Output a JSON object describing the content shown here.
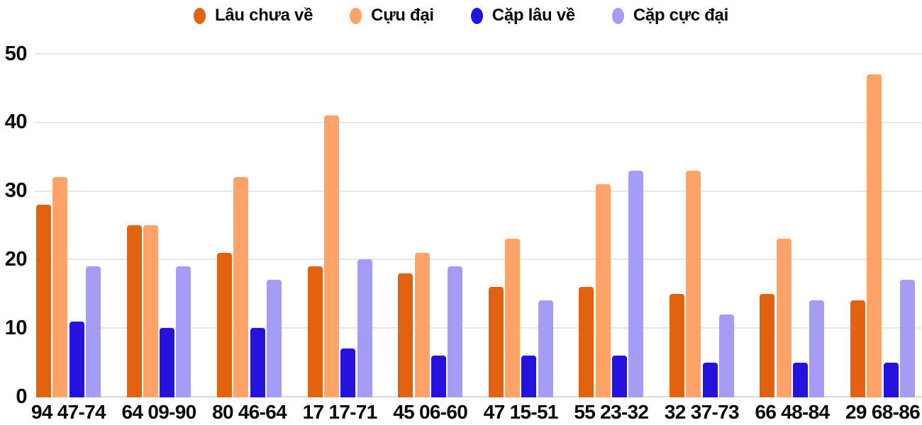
{
  "chart_data": {
    "type": "bar",
    "title": "",
    "xlabel": "",
    "ylabel": "",
    "grid": true,
    "legend_position": "top",
    "ylim": [
      0,
      50
    ],
    "y_ticks": [
      0,
      10,
      20,
      30,
      40,
      50
    ],
    "categories": [
      "94 47-74",
      "64 09-90",
      "80 46-64",
      "17 17-71",
      "45 06-60",
      "47 15-51",
      "55 23-32",
      "32 37-73",
      "66 48-84",
      "29 68-86"
    ],
    "series": [
      {
        "name": "Lâu chưa về",
        "color": "#e2620f",
        "values": [
          28,
          25,
          21,
          19,
          18,
          16,
          16,
          15,
          15,
          14
        ]
      },
      {
        "name": "Cựu đại",
        "color": "#ffa368",
        "values": [
          32,
          25,
          32,
          41,
          21,
          23,
          31,
          33,
          23,
          47
        ]
      },
      {
        "name": "Cặp lâu về",
        "color": "#2512dc",
        "values": [
          11,
          10,
          10,
          7,
          6,
          6,
          6,
          5,
          5,
          5
        ]
      },
      {
        "name": "Cặp cực đại",
        "color": "#a49cf5",
        "values": [
          19,
          19,
          17,
          20,
          19,
          14,
          33,
          12,
          14,
          17
        ]
      }
    ],
    "colors": {
      "text": "#0a0a0a",
      "gridline": "#e7e7e7",
      "baseline": "#d9d9d9",
      "background": "#ffffff"
    }
  }
}
